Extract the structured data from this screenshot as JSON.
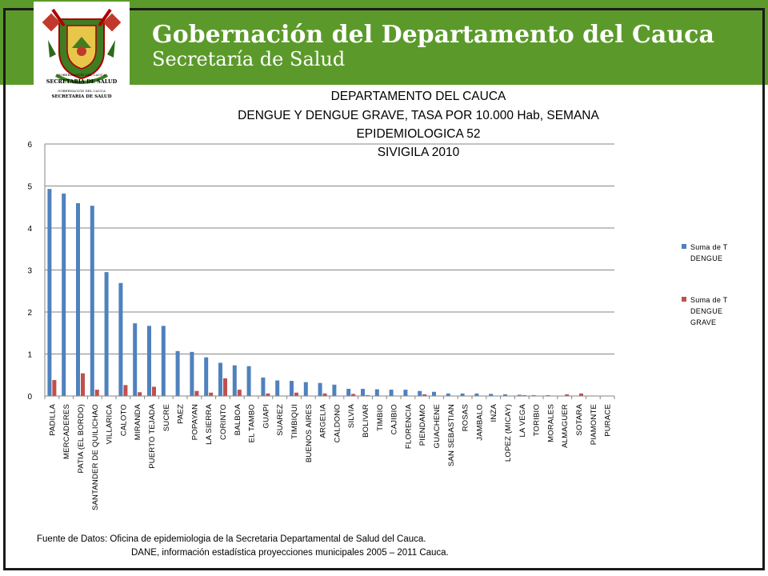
{
  "header": {
    "title": "Gobernación del Departamento del Cauca",
    "subtitle": "Secretaría de Salud",
    "logo_caption_top": "GOBERNACIÓN DEL CAUCA",
    "logo_caption_big": "SECRETARÍA DE SALUD",
    "logo_caption_bottom_small": "GOBERNACIÓN DEL CAUCA",
    "logo_caption_bottom": "SECRETARIA DE SALUD"
  },
  "colors": {
    "banner": "#5b9a2a",
    "series_dengue": "#4f81bd",
    "series_grave": "#c0504d",
    "gridline": "#868686"
  },
  "chart_data": {
    "type": "bar",
    "title": [
      "DEPARTAMENTO DEL CAUCA",
      "DENGUE Y DENGUE GRAVE, TASA POR 10.000 Hab, SEMANA",
      "EPIDEMIOLOGICA 52",
      "SIVIGILA 2010"
    ],
    "ylim": [
      0,
      6
    ],
    "yticks": [
      "0",
      "1",
      "2",
      "3",
      "4",
      "5",
      "6"
    ],
    "grid": true,
    "legend_position": "right",
    "categories": [
      "PADILLA",
      "MERCADERES",
      "PATIA (EL BORDO)",
      "SANTANDER DE QUILICHAO",
      "VILLARICA",
      "CALOTO",
      "MIRANDA",
      "PUERTO TEJADA",
      "SUCRE",
      "PAEZ",
      "POPAYAN",
      "LA SIERRA",
      "CORINTO",
      "BALBOA",
      "EL TAMBO",
      "GUAPI",
      "SUAREZ",
      "TIMBIQUI",
      "BUENOS AIRES",
      "ARGELIA",
      "CALDONO",
      "SILVIA",
      "BOLIVAR",
      "TIMBIO",
      "CAJIBIO",
      "FLORENCIA",
      "PIENDAMO",
      "GUACHENE",
      "SAN SEBASTIAN",
      "ROSAS",
      "JAMBALO",
      "INZA",
      "LOPEZ (MICAY)",
      "LA VEGA",
      "TORIBIO",
      "MORALES",
      "ALMAGUER",
      "SOTARA",
      "PIAMONTE",
      "PURACE"
    ],
    "series": [
      {
        "name": "Suma de T DENGUE",
        "legend_lines": [
          "Suma de T",
          "DENGUE"
        ],
        "values": [
          4.93,
          4.82,
          4.59,
          4.53,
          2.95,
          2.69,
          1.73,
          1.67,
          1.67,
          1.07,
          1.05,
          0.92,
          0.79,
          0.73,
          0.71,
          0.44,
          0.37,
          0.36,
          0.33,
          0.31,
          0.27,
          0.17,
          0.17,
          0.16,
          0.15,
          0.15,
          0.12,
          0.1,
          0.06,
          0.06,
          0.06,
          0.05,
          0.04,
          0.03,
          0.02,
          0.02,
          0.0,
          0.0,
          0.0,
          0.0
        ]
      },
      {
        "name": "Suma de T DENGUE GRAVE",
        "legend_lines": [
          "Suma de T",
          "DENGUE",
          "GRAVE"
        ],
        "values": [
          0.38,
          0.0,
          0.54,
          0.15,
          0.0,
          0.26,
          0.09,
          0.22,
          0.0,
          0.0,
          0.12,
          0.08,
          0.42,
          0.15,
          0.0,
          0.06,
          0.0,
          0.08,
          0.0,
          0.06,
          0.0,
          0.05,
          0.02,
          0.0,
          0.0,
          0.0,
          0.04,
          0.0,
          0.0,
          0.0,
          0.0,
          0.0,
          0.0,
          0.02,
          0.0,
          0.0,
          0.04,
          0.06,
          0.0,
          0.0
        ]
      }
    ]
  },
  "source": {
    "line1": "Fuente  de Datos: Oficina de epidemiologia de la Secretaria Departamental  de Salud del Cauca.",
    "line2": "DANE, información estadística proyecciones municipales 2005 – 2011 Cauca."
  }
}
